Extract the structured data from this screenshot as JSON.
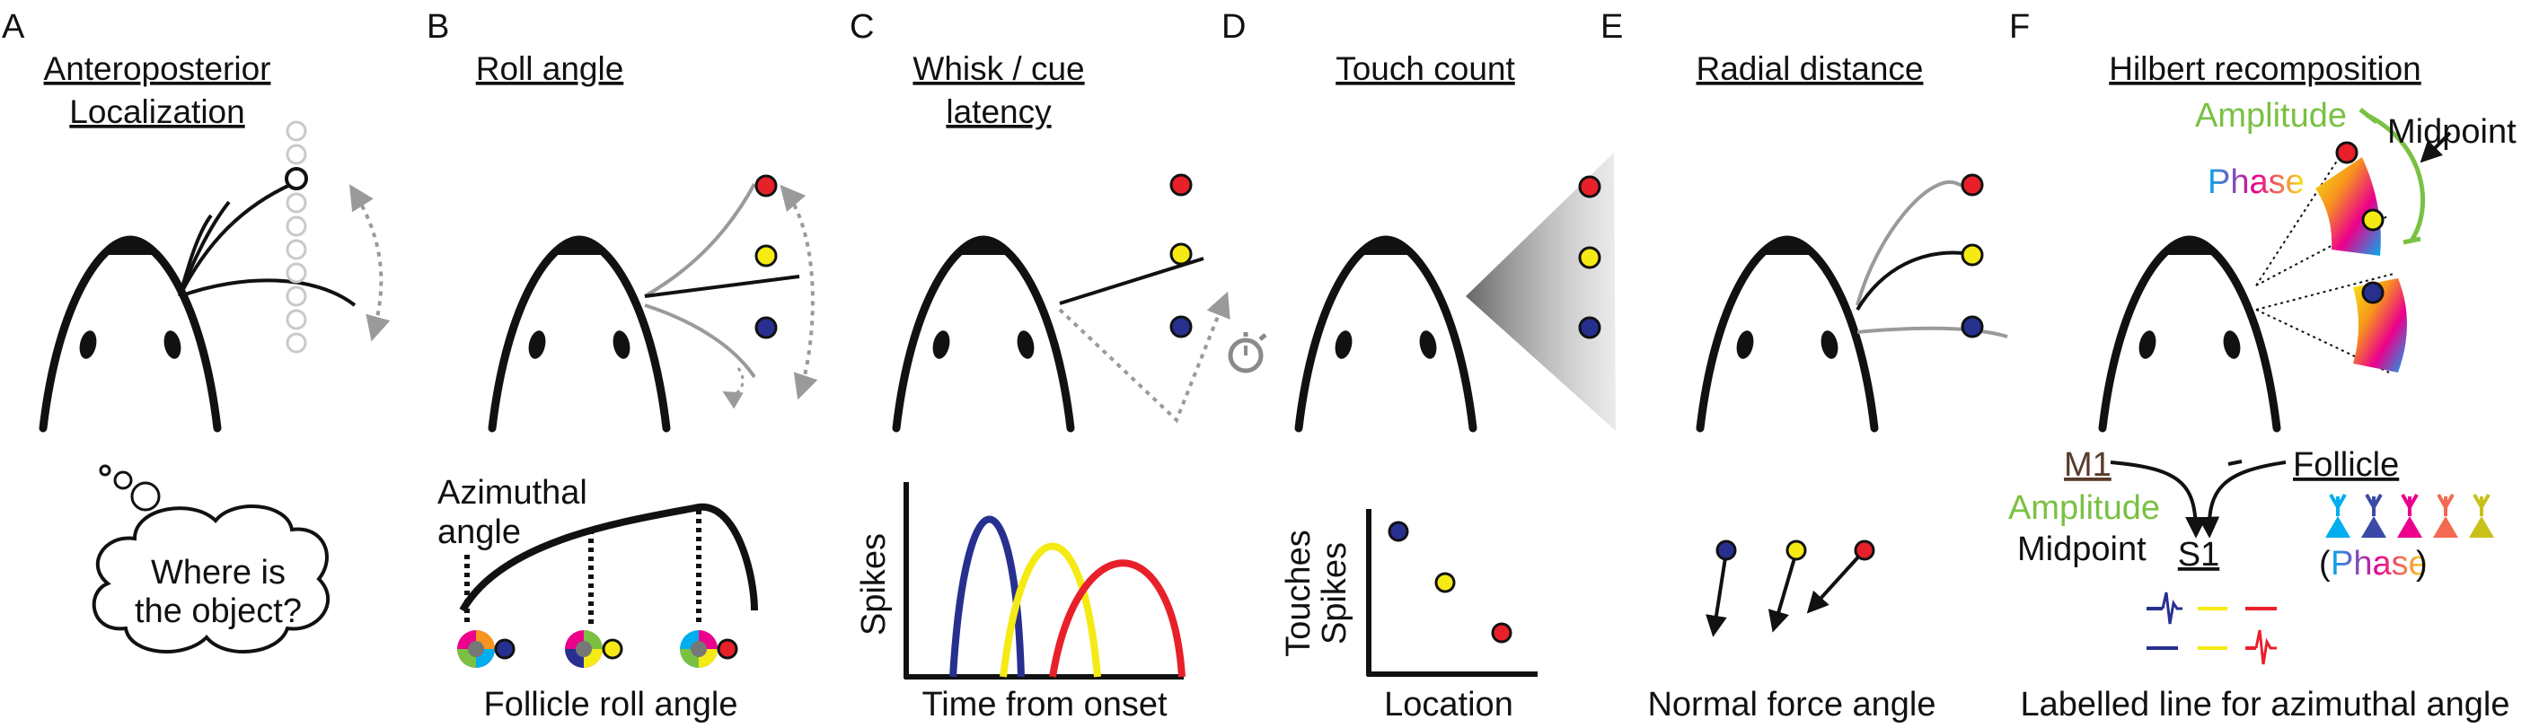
{
  "panels": [
    {
      "letter": "A",
      "title_lines": [
        "Anteroposterior",
        "Localization"
      ]
    },
    {
      "letter": "B",
      "title_lines": [
        "Roll angle"
      ]
    },
    {
      "letter": "C",
      "title_lines": [
        "Whisk / cue",
        "latency"
      ]
    },
    {
      "letter": "D",
      "title_lines": [
        "Touch count"
      ]
    },
    {
      "letter": "E",
      "title_lines": [
        "Radial distance"
      ]
    },
    {
      "letter": "F",
      "title_lines": [
        "Hilbert recomposition"
      ]
    }
  ],
  "a": {
    "thought_lines": [
      "Where is",
      "the object?"
    ]
  },
  "b": {
    "azimuthal_lines": [
      "Azimuthal",
      "angle"
    ],
    "bottom": "Follicle roll angle"
  },
  "c": {
    "ylabel": "Spikes",
    "xlabel": "Time from onset"
  },
  "d": {
    "ylabel_outer": "Touches",
    "ylabel_inner": "Spikes",
    "xlabel": "Location"
  },
  "e": {
    "bottom": "Normal force angle"
  },
  "f": {
    "amplitude": "Amplitude",
    "midpoint": "Midpoint",
    "phase": "Phase",
    "m1": "M1",
    "follicle": "Follicle",
    "amplitude2": "Amplitude",
    "midpoint2": "Midpoint",
    "s1": "S1",
    "phase2": "Phase",
    "paren_open": "(",
    "paren_close": ")",
    "bottom": "Labelled line for azimuthal angle"
  },
  "colors": {
    "red": "#e8202a",
    "yellow": "#f5ea14",
    "blue": "#27308f",
    "grey": "#9a9a9a",
    "green": "#7ac143",
    "dark": "#111111"
  }
}
